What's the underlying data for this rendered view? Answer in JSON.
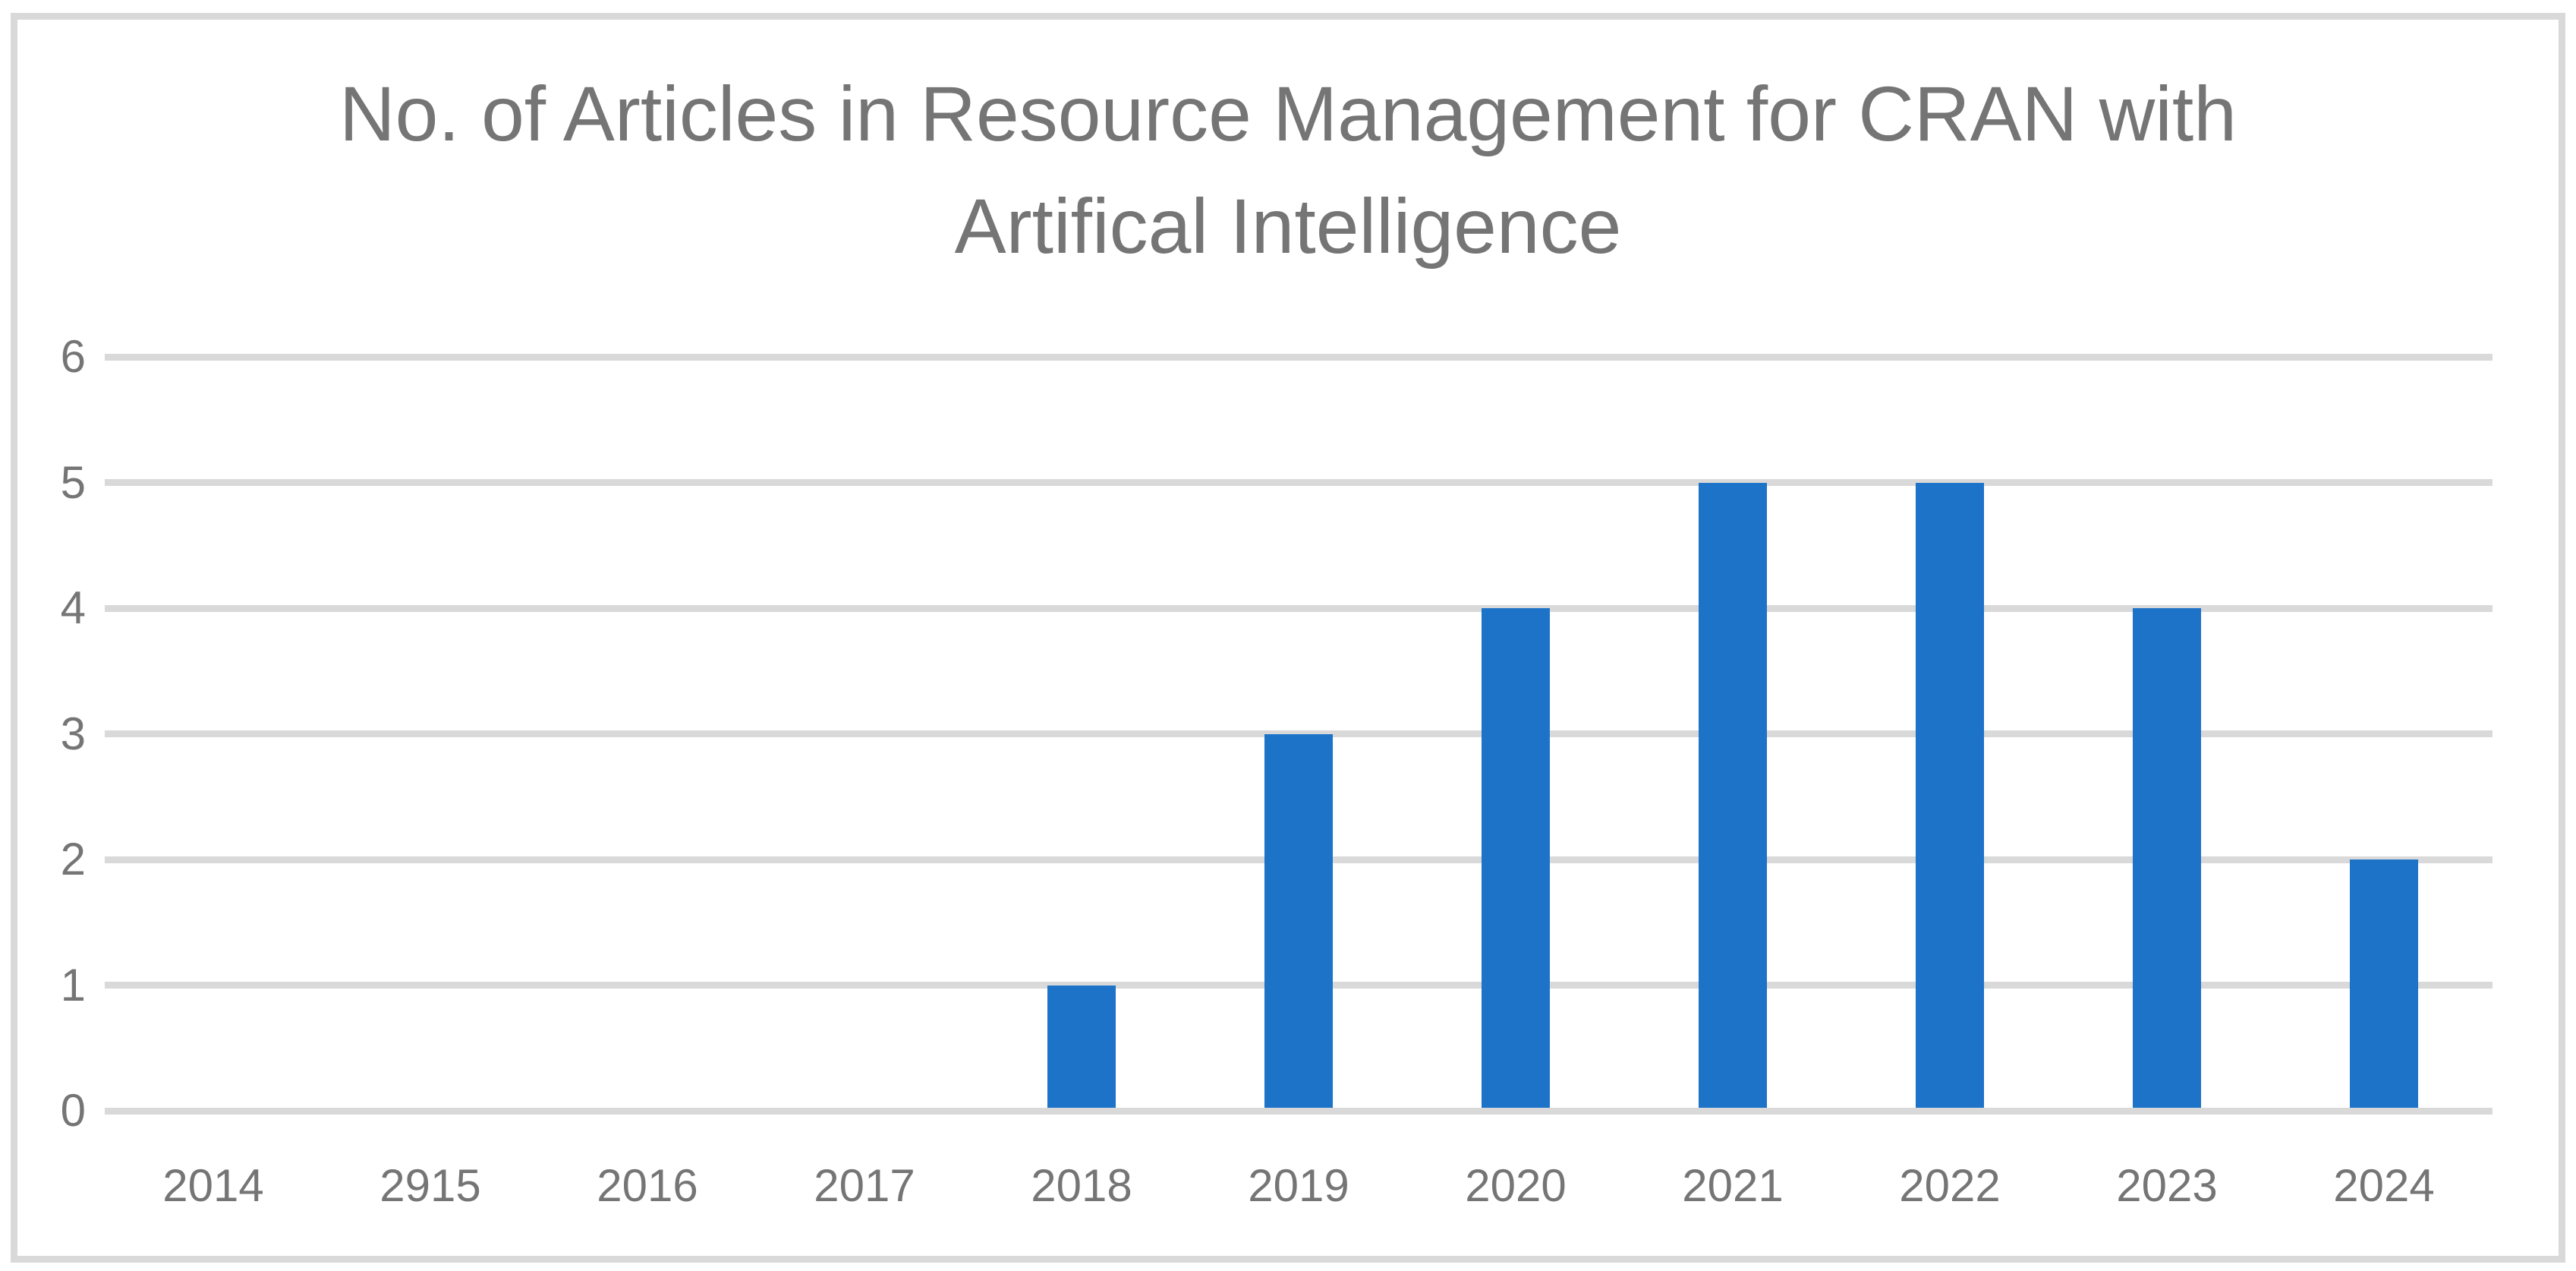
{
  "chart_data": {
    "type": "bar",
    "title": "No. of Articles in Resource Management for CRAN with Artifical Intelligence",
    "title_lines": [
      "No. of Articles in Resource Management for CRAN with",
      "Artifical Intelligence"
    ],
    "categories": [
      "2014",
      "2915",
      "2016",
      "2017",
      "2018",
      "2019",
      "2020",
      "2021",
      "2022",
      "2023",
      "2024"
    ],
    "values": [
      0,
      0,
      0,
      0,
      1,
      3,
      4,
      5,
      5,
      4,
      2
    ],
    "xlabel": "",
    "ylabel": "",
    "ylim": [
      0,
      6
    ],
    "yticks": [
      0,
      1,
      2,
      3,
      4,
      5,
      6
    ],
    "grid": "horizontal",
    "legend_position": "none",
    "colors": {
      "bar": "#1C73C8",
      "gridline": "#D9D9D9",
      "frame_border": "#D9D9D9",
      "text": "#757575",
      "background": "#FFFFFF"
    }
  }
}
